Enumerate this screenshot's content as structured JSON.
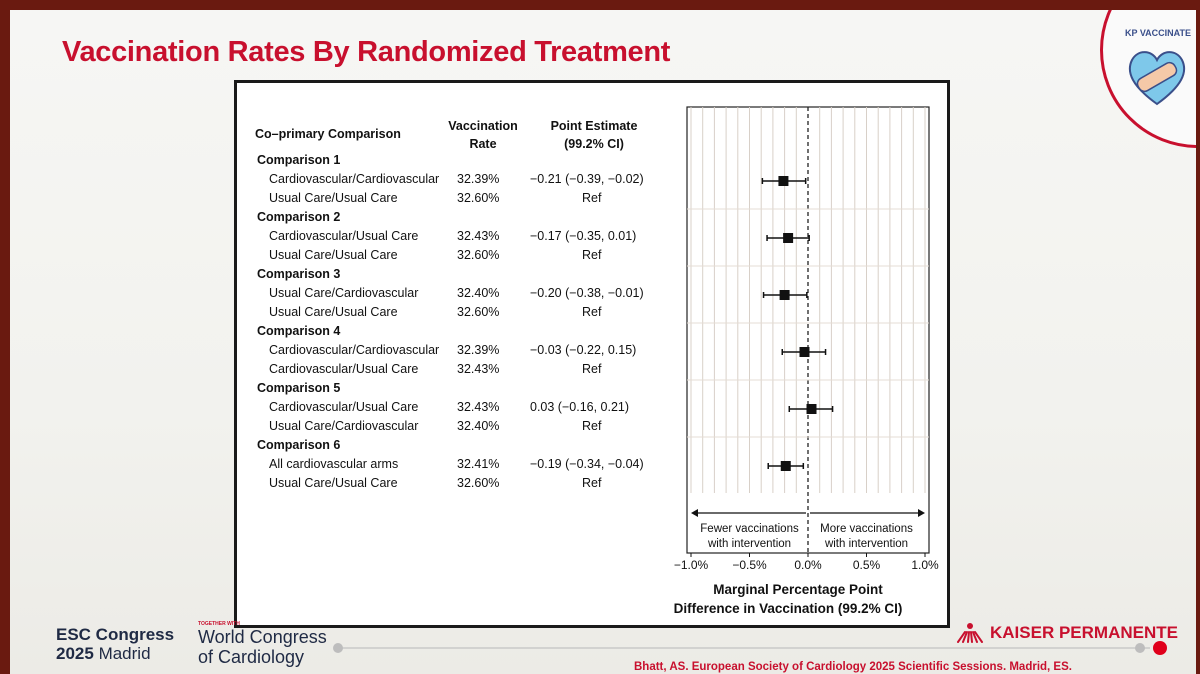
{
  "slide": {
    "title": "Vaccination Rates By Randomized Treatment",
    "logo_label": "KP VACCINATE",
    "citation": "Bhatt, AS. European Society of Cardiology 2025 Scientific Sessions. Madrid, ES."
  },
  "footer": {
    "esc_line1": "ESC Congress",
    "esc_line2_year": "2025",
    "esc_line2_city": "Madrid",
    "together_with": "TOGETHER WITH",
    "wcc_line1": "World Congress",
    "wcc_line2": "of Cardiology",
    "sponsor": "KAISER PERMANENTE"
  },
  "chart_data": {
    "type": "forest",
    "headers": {
      "comparison": "Co–primary Comparison",
      "rate_line1": "Vaccination",
      "rate_line2": "Rate",
      "estimate_line1": "Point Estimate",
      "estimate_line2": "(99.2% CI)"
    },
    "xlim": [
      -1.0,
      1.0
    ],
    "x_ticks": [
      "−1.0%",
      "−0.5%",
      "0.0%",
      "0.5%",
      "1.0%"
    ],
    "x_tick_values": [
      -1.0,
      -0.5,
      0.0,
      0.5,
      1.0
    ],
    "xlabel_line1": "Marginal Percentage Point",
    "xlabel_line2": "Difference in Vaccination (99.2% CI)",
    "annotation_left_line1": "Fewer vaccinations",
    "annotation_left_line2": "with intervention",
    "annotation_right_line1": "More vaccinations",
    "annotation_right_line2": "with intervention",
    "groups": [
      {
        "name": "Comparison 1",
        "rows": [
          {
            "arm": "Cardiovascular/Cardiovascular",
            "rate": "32.39%",
            "estimate": "−0.21 (−0.39, −0.02)",
            "point": -0.21,
            "lo": -0.39,
            "hi": -0.02
          },
          {
            "arm": "Usual Care/Usual Care",
            "rate": "32.60%",
            "estimate": "Ref"
          }
        ]
      },
      {
        "name": "Comparison 2",
        "rows": [
          {
            "arm": "Cardiovascular/Usual Care",
            "rate": "32.43%",
            "estimate": "−0.17 (−0.35, 0.01)",
            "point": -0.17,
            "lo": -0.35,
            "hi": 0.01
          },
          {
            "arm": "Usual Care/Usual Care",
            "rate": "32.60%",
            "estimate": "Ref"
          }
        ]
      },
      {
        "name": "Comparison 3",
        "rows": [
          {
            "arm": "Usual Care/Cardiovascular",
            "rate": "32.40%",
            "estimate": "−0.20 (−0.38, −0.01)",
            "point": -0.2,
            "lo": -0.38,
            "hi": -0.01
          },
          {
            "arm": "Usual Care/Usual Care",
            "rate": "32.60%",
            "estimate": "Ref"
          }
        ]
      },
      {
        "name": "Comparison 4",
        "rows": [
          {
            "arm": "Cardiovascular/Cardiovascular",
            "rate": "32.39%",
            "estimate": "−0.03 (−0.22, 0.15)",
            "point": -0.03,
            "lo": -0.22,
            "hi": 0.15
          },
          {
            "arm": "Cardiovascular/Usual Care",
            "rate": "32.43%",
            "estimate": "Ref"
          }
        ]
      },
      {
        "name": "Comparison 5",
        "rows": [
          {
            "arm": "Cardiovascular/Usual Care",
            "rate": "32.43%",
            "estimate": "0.03 (−0.16, 0.21)",
            "point": 0.03,
            "lo": -0.16,
            "hi": 0.21
          },
          {
            "arm": "Usual Care/Cardiovascular",
            "rate": "32.40%",
            "estimate": "Ref"
          }
        ]
      },
      {
        "name": "Comparison 6",
        "rows": [
          {
            "arm": "All cardiovascular arms",
            "rate": "32.41%",
            "estimate": "−0.19 (−0.34, −0.04)",
            "point": -0.19,
            "lo": -0.34,
            "hi": -0.04
          },
          {
            "arm": "Usual Care/Usual Care",
            "rate": "32.60%",
            "estimate": "Ref"
          }
        ]
      }
    ]
  }
}
